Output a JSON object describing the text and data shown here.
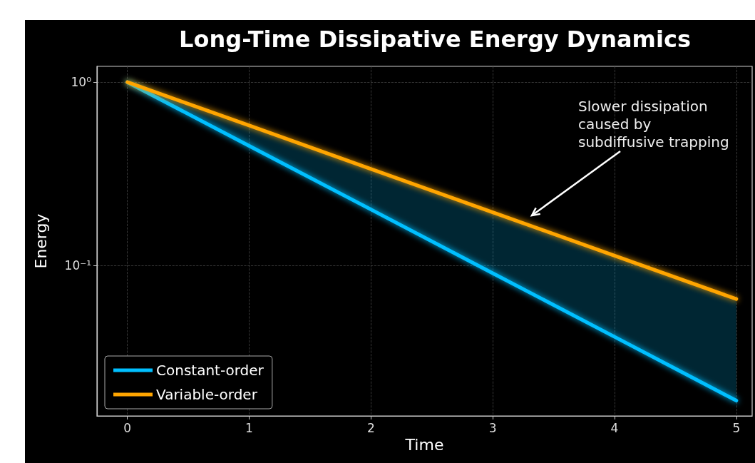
{
  "chart_data": {
    "type": "line",
    "title": "Long-Time Dissipative Energy Dynamics",
    "xlabel": "Time",
    "ylabel": "Energy",
    "x": [
      0,
      1,
      2,
      3,
      4,
      5
    ],
    "series": [
      {
        "name": "Constant-order",
        "color": "#00bfff",
        "values": [
          1,
          0.449,
          0.202,
          0.0907,
          0.0408,
          0.0183
        ]
      },
      {
        "name": "Variable-order",
        "color": "#ffa500",
        "values": [
          1,
          0.58,
          0.336,
          0.195,
          0.113,
          0.0656
        ],
        "lower": [
          1,
          0.449,
          0.202,
          0.0907,
          0.0408,
          0.0183
        ],
        "upper": [
          1,
          0.58,
          0.336,
          0.195,
          0.113,
          0.0656
        ]
      }
    ],
    "annotations": [
      "Slower dissipation\ncaused by\nsubdiffusive trapping"
    ],
    "xlim": [
      -0.25,
      5.13
    ],
    "xticks": [
      0,
      1,
      2,
      3,
      4,
      5
    ],
    "ylim": [
      0.0151,
      1.22
    ],
    "yticks": [
      {
        "value": 1,
        "label": "10⁰"
      },
      {
        "value": 0.1,
        "label": "10⁻¹"
      }
    ],
    "log": "y",
    "grid": true,
    "legend": "bottom left",
    "marker": "none",
    "line_style": "solid"
  }
}
